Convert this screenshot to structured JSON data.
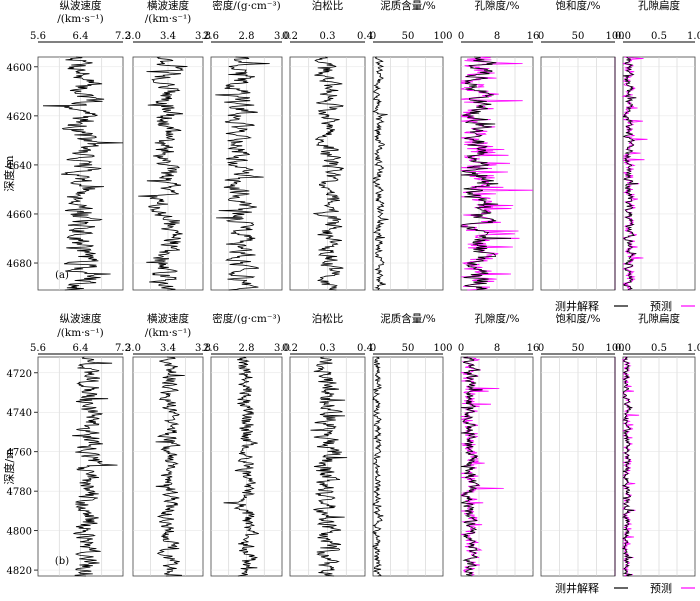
{
  "chart_data": [
    {
      "type": "line",
      "panel_label": "(a)",
      "ylabel": "深度/m",
      "depth_range": [
        4596,
        4691
      ],
      "depth_ticks": [
        4600,
        4620,
        4640,
        4660,
        4680
      ],
      "tracks": [
        {
          "title": "纵波速度",
          "unit": "/(km·s⁻¹)",
          "range": [
            5.6,
            7.2
          ],
          "ticks": [
            "5.6",
            "6.4",
            "7.2"
          ],
          "color": "#000000",
          "baseline": 6.45,
          "amplitude": 0.32
        },
        {
          "title": "横波速度",
          "unit": "/(km·s⁻¹)",
          "range": [
            3.0,
            3.8
          ],
          "ticks": [
            "3.0",
            "3.4",
            "3.8"
          ],
          "color": "#000000",
          "baseline": 3.38,
          "amplitude": 0.16
        },
        {
          "title": "密度/(g·cm⁻³)",
          "unit": "",
          "range": [
            2.6,
            3.0
          ],
          "ticks": [
            "2.6",
            "2.8",
            "3.0"
          ],
          "color": "#000000",
          "baseline": 2.77,
          "amplitude": 0.08
        },
        {
          "title": "泊松比",
          "unit": "",
          "range": [
            0.2,
            0.4
          ],
          "ticks": [
            "0.2",
            "0.3",
            "0.4"
          ],
          "color": "#000000",
          "baseline": 0.305,
          "amplitude": 0.03
        },
        {
          "title": "泥质含量/%",
          "unit": "",
          "range": [
            0,
            100
          ],
          "ticks": [
            "0",
            "50",
            "100"
          ],
          "color": "#000000",
          "baseline": 8,
          "amplitude": 6
        },
        {
          "title": "孔隙度/%",
          "unit": "",
          "range": [
            0,
            16
          ],
          "ticks": [
            "0",
            "8",
            "16"
          ],
          "color": "#000000",
          "baseline": 4,
          "amplitude": 3,
          "predicted": true
        },
        {
          "title": "饱和度/%",
          "unit": "",
          "range": [
            0,
            100
          ],
          "ticks": [
            "0",
            "50",
            "100"
          ],
          "color": "#000000",
          "baseline": 100,
          "amplitude": 0,
          "predicted": true
        },
        {
          "title": "孔隙扁度",
          "unit": "",
          "range": [
            0.0,
            1.0
          ],
          "ticks": [
            "0.0",
            "0.5",
            "1.0"
          ],
          "color": "#000000",
          "baseline": 0.08,
          "amplitude": 0.06,
          "predicted": true
        }
      ],
      "legend": [
        {
          "name": "测井解释",
          "color": "#000000"
        },
        {
          "name": "预测",
          "color": "#ff00ff"
        }
      ]
    },
    {
      "type": "line",
      "panel_label": "(b)",
      "ylabel": "深度/m",
      "depth_range": [
        4712,
        4823
      ],
      "depth_ticks": [
        4720,
        4740,
        4760,
        4780,
        4800,
        4820
      ],
      "tracks": [
        {
          "title": "纵波速度",
          "unit": "/(km·s⁻¹)",
          "range": [
            5.6,
            7.2
          ],
          "ticks": [
            "5.6",
            "6.4",
            "7.2"
          ],
          "color": "#000000",
          "baseline": 6.55,
          "amplitude": 0.22
        },
        {
          "title": "横波速度",
          "unit": "/(km·s⁻¹)",
          "range": [
            3.0,
            3.8
          ],
          "ticks": [
            "3.0",
            "3.4",
            "3.8"
          ],
          "color": "#000000",
          "baseline": 3.42,
          "amplitude": 0.1
        },
        {
          "title": "密度/(g·cm⁻³)",
          "unit": "",
          "range": [
            2.6,
            3.0
          ],
          "ticks": [
            "2.6",
            "2.8",
            "3.0"
          ],
          "color": "#000000",
          "baseline": 2.8,
          "amplitude": 0.05
        },
        {
          "title": "泊松比",
          "unit": "",
          "range": [
            0.2,
            0.4
          ],
          "ticks": [
            "0.2",
            "0.3",
            "0.4"
          ],
          "color": "#000000",
          "baseline": 0.3,
          "amplitude": 0.03
        },
        {
          "title": "泥质含量/%",
          "unit": "",
          "range": [
            0,
            100
          ],
          "ticks": [
            "0",
            "50",
            "100"
          ],
          "color": "#000000",
          "baseline": 6,
          "amplitude": 5
        },
        {
          "title": "孔隙度/%",
          "unit": "",
          "range": [
            0,
            16
          ],
          "ticks": [
            "0",
            "8",
            "16"
          ],
          "color": "#000000",
          "baseline": 2,
          "amplitude": 1.5,
          "predicted": true
        },
        {
          "title": "饱和度/%",
          "unit": "",
          "range": [
            0,
            100
          ],
          "ticks": [
            "0",
            "50",
            "100"
          ],
          "color": "#000000",
          "baseline": 100,
          "amplitude": 0,
          "predicted": true
        },
        {
          "title": "孔隙扁度",
          "unit": "",
          "range": [
            0.0,
            1.0
          ],
          "ticks": [
            "0.0",
            "0.5",
            "1.0"
          ],
          "color": "#000000",
          "baseline": 0.05,
          "amplitude": 0.04,
          "predicted": true
        }
      ],
      "legend": [
        {
          "name": "测井解释",
          "color": "#000000"
        },
        {
          "name": "预测",
          "color": "#ff00ff"
        }
      ]
    }
  ]
}
